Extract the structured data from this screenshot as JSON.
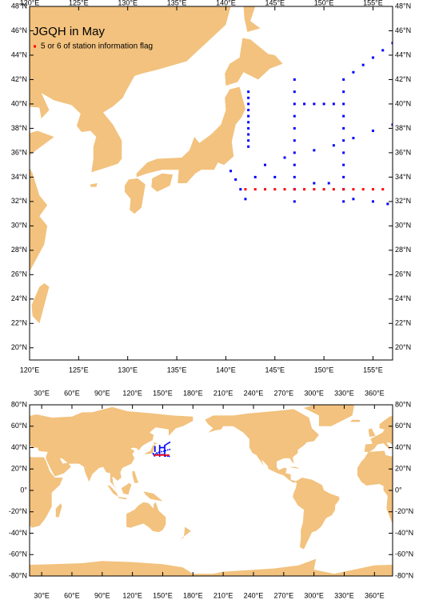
{
  "chart_data": [
    {
      "type": "map",
      "title": "JGQH in May",
      "xlim": [
        120,
        157
      ],
      "ylim": [
        19,
        48
      ],
      "xticks": [
        {
          "value": 120,
          "label": "120°E"
        },
        {
          "value": 125,
          "label": "125°E"
        },
        {
          "value": 130,
          "label": "130°E"
        },
        {
          "value": 135,
          "label": "135°E"
        },
        {
          "value": 140,
          "label": "140°E"
        },
        {
          "value": 145,
          "label": "145°E"
        },
        {
          "value": 150,
          "label": "150°E"
        },
        {
          "value": 155,
          "label": "155°E"
        }
      ],
      "yticks": [
        {
          "value": 20,
          "label": "20°N"
        },
        {
          "value": 22,
          "label": "22°N"
        },
        {
          "value": 24,
          "label": "24°N"
        },
        {
          "value": 26,
          "label": "26°N"
        },
        {
          "value": 28,
          "label": "28°N"
        },
        {
          "value": 30,
          "label": "30°N"
        },
        {
          "value": 32,
          "label": "32°N"
        },
        {
          "value": 34,
          "label": "34°N"
        },
        {
          "value": 36,
          "label": "36°N"
        },
        {
          "value": 38,
          "label": "38°N"
        },
        {
          "value": 40,
          "label": "40°N"
        },
        {
          "value": 42,
          "label": "42°N"
        },
        {
          "value": 44,
          "label": "44°N"
        },
        {
          "value": 46,
          "label": "46°N"
        },
        {
          "value": 48,
          "label": "48°N"
        }
      ],
      "series": [
        {
          "color": "#0000ff",
          "x": [
            142.3,
            142.3,
            142.3,
            142.3,
            142.3,
            142.3,
            142.3,
            142.3,
            142.3,
            142.3,
            147,
            147,
            147,
            147,
            147,
            147,
            147,
            147,
            147,
            147,
            147,
            152,
            152,
            152,
            152,
            152,
            152,
            152,
            152,
            152,
            152,
            152,
            140.5,
            141,
            141.5,
            142,
            144,
            146,
            149,
            151,
            153,
            155,
            157,
            153,
            154,
            155,
            156,
            157,
            148,
            149,
            150,
            151,
            153,
            155,
            156.5,
            143,
            145,
            149,
            150.5
          ],
          "y": [
            36.5,
            37,
            37.5,
            38,
            38.5,
            39,
            39.5,
            40,
            40.5,
            41,
            32,
            33,
            34,
            35,
            36,
            37,
            38,
            39,
            40,
            41,
            42,
            32,
            33,
            34,
            35,
            36,
            37,
            38,
            39,
            40,
            41,
            42,
            34.5,
            33.8,
            33,
            32.2,
            35,
            35.6,
            36.2,
            36.6,
            37.2,
            37.8,
            38.3,
            42.6,
            43.2,
            43.8,
            44.4,
            45,
            40,
            40,
            40,
            40,
            32.2,
            32,
            31.8,
            34,
            34,
            33.5,
            33.5
          ]
        },
        {
          "name": "5 or 6 of station information flag",
          "color": "#ff0000",
          "x": [
            142,
            143,
            144,
            145,
            146,
            147,
            148,
            149,
            150,
            151,
            152,
            153,
            154,
            155,
            156
          ],
          "y": [
            33,
            33,
            33,
            33,
            33,
            33,
            33,
            33,
            33,
            33,
            33,
            33,
            33,
            33,
            33
          ]
        }
      ]
    },
    {
      "type": "map",
      "xlim": [
        18,
        378
      ],
      "ylim": [
        -80,
        80
      ],
      "xticks": [
        {
          "value": 30,
          "label": "30°E"
        },
        {
          "value": 60,
          "label": "60°E"
        },
        {
          "value": 90,
          "label": "90°E"
        },
        {
          "value": 120,
          "label": "120°E"
        },
        {
          "value": 150,
          "label": "150°E"
        },
        {
          "value": 180,
          "label": "180°E"
        },
        {
          "value": 210,
          "label": "210°E"
        },
        {
          "value": 240,
          "label": "240°E"
        },
        {
          "value": 270,
          "label": "270°E"
        },
        {
          "value": 300,
          "label": "300°E"
        },
        {
          "value": 330,
          "label": "330°E"
        },
        {
          "value": 360,
          "label": "360°E"
        }
      ],
      "yticks": [
        {
          "value": -80,
          "label": "-80°N"
        },
        {
          "value": -60,
          "label": "-60°N"
        },
        {
          "value": -40,
          "label": "-40°N"
        },
        {
          "value": -20,
          "label": "-20°N"
        },
        {
          "value": 0,
          "label": "0°"
        },
        {
          "value": 20,
          "label": "20°N"
        },
        {
          "value": 40,
          "label": "40°N"
        },
        {
          "value": 60,
          "label": "60°N"
        },
        {
          "value": 80,
          "label": "80°N"
        }
      ]
    }
  ]
}
